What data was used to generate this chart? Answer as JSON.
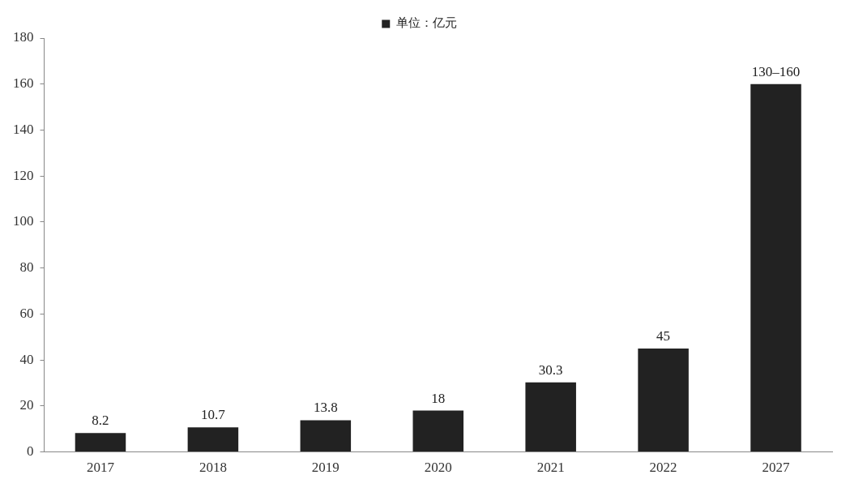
{
  "chart_data": {
    "type": "bar",
    "categories": [
      "2017",
      "2018",
      "2019",
      "2020",
      "2021",
      "2022",
      "2027"
    ],
    "series": [
      {
        "name": "单位：亿元",
        "color": "#222222",
        "values": [
          8.2,
          10.7,
          13.8,
          18,
          30.3,
          45,
          160
        ],
        "value_labels": [
          "8.2",
          "10.7",
          "13.8",
          "18",
          "30.3",
          "45",
          "130–160"
        ]
      }
    ],
    "ylim": [
      0,
      180
    ],
    "yticks": [
      0,
      20,
      40,
      60,
      80,
      100,
      120,
      140,
      160,
      180
    ],
    "grid": false,
    "legend": "top"
  }
}
